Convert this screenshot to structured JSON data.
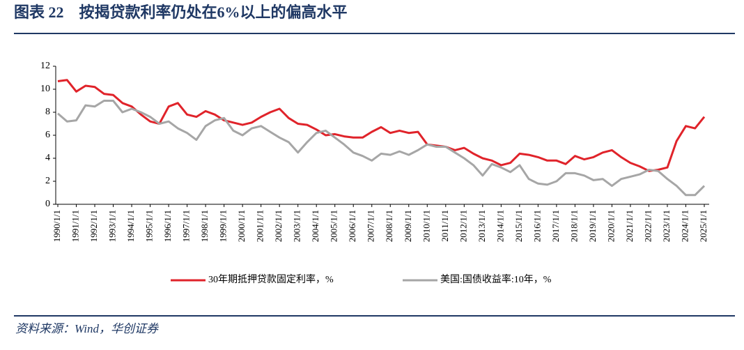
{
  "chart_data": {
    "type": "line",
    "title": "图表 22　按揭贷款利率仍处在6%以上的偏高水平",
    "source": "资料来源：Wind，华创证券",
    "categories": [
      "1990/1/1",
      null,
      "1991/1/1",
      null,
      "1992/1/1",
      null,
      "1993/1/1",
      null,
      "1994/1/1",
      null,
      "1995/1/1",
      null,
      "1996/1/1",
      null,
      "1997/1/1",
      null,
      "1998/1/1",
      null,
      "1999/1/1",
      null,
      "2000/1/1",
      null,
      "2001/1/1",
      null,
      "2002/1/1",
      null,
      "2003/1/1",
      null,
      "2004/1/1",
      null,
      "2005/1/1",
      null,
      "2006/1/1",
      null,
      "2007/1/1",
      null,
      "2008/1/1",
      null,
      "2009/1/1",
      null,
      "2010/1/1",
      null,
      "2011/1/1",
      null,
      "2012/1/1",
      null,
      "2013/1/1",
      null,
      "2014/1/1",
      null,
      "2015/1/1",
      null,
      "2016/1/1",
      null,
      "2017/1/1",
      null,
      "2018/1/1",
      null,
      "2019/1/1",
      null,
      "2020/1/1",
      null,
      "2021/1/1",
      null,
      "2022/1/1",
      null,
      "2023/1/1",
      null,
      "2024/1/1",
      null,
      "2025/1/1"
    ],
    "series": [
      {
        "name": "30年期抵押贷款固定利率，%",
        "color": "#e0232a",
        "values": [
          10.7,
          10.8,
          9.8,
          10.3,
          10.2,
          9.6,
          9.5,
          8.8,
          8.5,
          7.8,
          7.2,
          7.0,
          8.5,
          8.8,
          7.8,
          7.6,
          8.1,
          7.8,
          7.3,
          7.1,
          6.9,
          7.1,
          7.6,
          8.0,
          8.3,
          7.5,
          7.0,
          6.9,
          6.5,
          6.0,
          6.1,
          5.9,
          5.8,
          5.8,
          6.3,
          6.7,
          6.2,
          6.4,
          6.2,
          6.3,
          5.2,
          5.1,
          5.0,
          4.7,
          4.9,
          4.4,
          4.0,
          3.8,
          3.4,
          3.6,
          4.4,
          4.3,
          4.1,
          3.8,
          3.8,
          3.5,
          4.2,
          3.9,
          4.1,
          4.5,
          4.7,
          4.1,
          3.6,
          3.3,
          2.9,
          3.0,
          3.2,
          5.5,
          6.8,
          6.6,
          7.6
        ]
      },
      {
        "name": "美国:国债收益率:10年，%",
        "color": "#a6a6a6",
        "values": [
          7.9,
          7.2,
          7.3,
          8.6,
          8.5,
          9.0,
          9.0,
          8.0,
          8.3,
          8.0,
          7.6,
          7.0,
          7.2,
          6.6,
          6.2,
          5.6,
          6.8,
          7.3,
          7.5,
          6.4,
          6.0,
          6.6,
          6.8,
          6.3,
          5.8,
          5.4,
          4.5,
          5.4,
          6.2,
          6.4,
          5.8,
          5.2,
          4.5,
          4.2,
          3.8,
          4.4,
          4.3,
          4.6,
          4.3,
          4.7,
          5.2,
          5.0,
          5.0,
          4.5,
          4.0,
          3.4,
          2.5,
          3.5,
          3.2,
          2.8,
          3.4,
          2.2,
          1.8,
          1.7,
          2.0,
          2.7,
          2.7,
          2.5,
          2.1,
          2.2,
          1.6,
          2.2,
          2.4,
          2.6,
          3.0,
          2.9,
          2.2,
          1.6,
          0.8,
          0.8,
          1.6
        ]
      }
    ],
    "ylim": [
      0,
      12
    ],
    "yticks": [
      0,
      2,
      4,
      6,
      8,
      10,
      12
    ],
    "legend": "bottom"
  }
}
